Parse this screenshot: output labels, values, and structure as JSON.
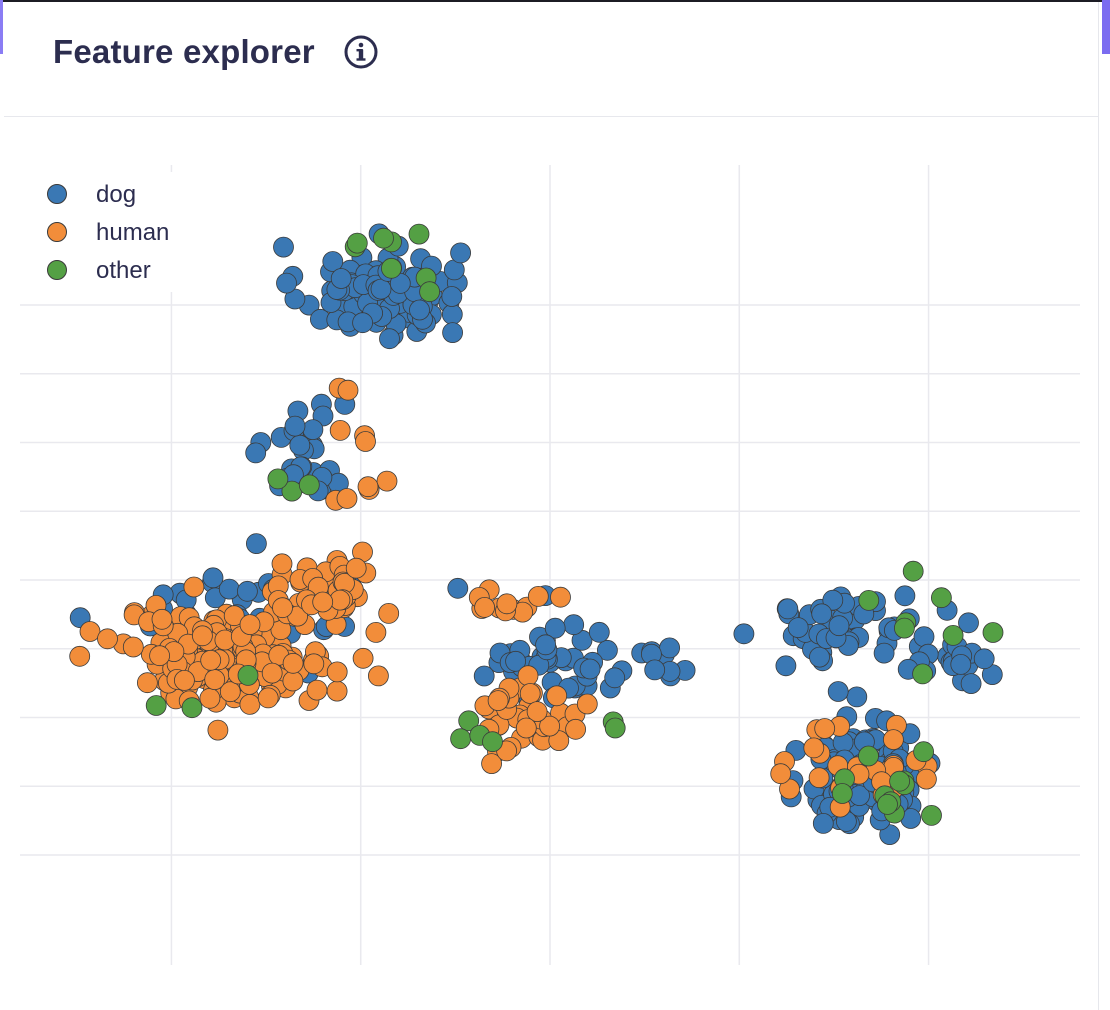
{
  "panel": {
    "title": "Feature explorer",
    "info_icon": "info-circle-icon"
  },
  "colors": {
    "title": "#2c2d4f",
    "grid": "#e9e9ee",
    "accent": "#7b6cf0"
  },
  "chart_data": {
    "type": "scatter",
    "title": "",
    "xlabel": "",
    "ylabel": "",
    "xlim": [
      -1.6,
      9.6
    ],
    "ylim": [
      -1.6,
      10.4
    ],
    "grid": true,
    "x_ticks": [
      0,
      2,
      4,
      6,
      8
    ],
    "y_ticks": [
      0,
      1,
      2,
      3,
      4,
      5,
      6,
      7,
      8
    ],
    "legend_position": "top-left",
    "series": [
      {
        "name": "dog",
        "color": "#3a78b4",
        "clusters": [
          {
            "cx": 2.2,
            "cy": 8.2,
            "sx": 0.7,
            "sy": 0.55,
            "n": 110
          },
          {
            "cx": 1.4,
            "cy": 5.9,
            "sx": 0.35,
            "sy": 0.7,
            "n": 30
          },
          {
            "cx": 0.9,
            "cy": 3.6,
            "sx": 1.1,
            "sy": 0.6,
            "n": 45
          },
          {
            "cx": 4.0,
            "cy": 2.8,
            "sx": 0.6,
            "sy": 0.6,
            "n": 40
          },
          {
            "cx": 5.1,
            "cy": 2.7,
            "sx": 0.5,
            "sy": 0.3,
            "n": 14
          },
          {
            "cx": 7.2,
            "cy": 3.3,
            "sx": 0.8,
            "sy": 0.4,
            "n": 55
          },
          {
            "cx": 7.4,
            "cy": 1.2,
            "sx": 0.55,
            "sy": 0.7,
            "n": 120
          },
          {
            "cx": 8.3,
            "cy": 2.7,
            "sx": 0.5,
            "sy": 0.25,
            "n": 16
          }
        ]
      },
      {
        "name": "human",
        "color": "#f28d3a",
        "clusters": [
          {
            "cx": 0.6,
            "cy": 2.9,
            "sx": 0.9,
            "sy": 0.55,
            "n": 200
          },
          {
            "cx": 1.6,
            "cy": 3.8,
            "sx": 0.5,
            "sy": 0.4,
            "n": 50
          },
          {
            "cx": 3.8,
            "cy": 2.0,
            "sx": 0.45,
            "sy": 0.45,
            "n": 40
          },
          {
            "cx": 3.6,
            "cy": 3.7,
            "sx": 0.3,
            "sy": 0.3,
            "n": 12
          },
          {
            "cx": 7.3,
            "cy": 1.3,
            "sx": 0.7,
            "sy": 0.55,
            "n": 28
          },
          {
            "cx": 2.0,
            "cy": 6.2,
            "sx": 0.4,
            "sy": 1.3,
            "n": 10
          }
        ]
      },
      {
        "name": "other",
        "color": "#54a044",
        "clusters": [
          {
            "cx": 2.3,
            "cy": 8.6,
            "sx": 0.6,
            "sy": 0.35,
            "n": 8
          },
          {
            "cx": 1.3,
            "cy": 5.4,
            "sx": 0.2,
            "sy": 0.25,
            "n": 3
          },
          {
            "cx": 0.0,
            "cy": 2.3,
            "sx": 0.6,
            "sy": 0.5,
            "n": 3
          },
          {
            "cx": 3.3,
            "cy": 1.8,
            "sx": 0.3,
            "sy": 0.2,
            "n": 4
          },
          {
            "cx": 4.7,
            "cy": 1.8,
            "sx": 0.1,
            "sy": 0.3,
            "n": 2
          },
          {
            "cx": 7.6,
            "cy": 1.2,
            "sx": 0.6,
            "sy": 0.6,
            "n": 12
          },
          {
            "cx": 7.9,
            "cy": 3.2,
            "sx": 0.7,
            "sy": 0.6,
            "n": 8
          }
        ]
      }
    ]
  }
}
